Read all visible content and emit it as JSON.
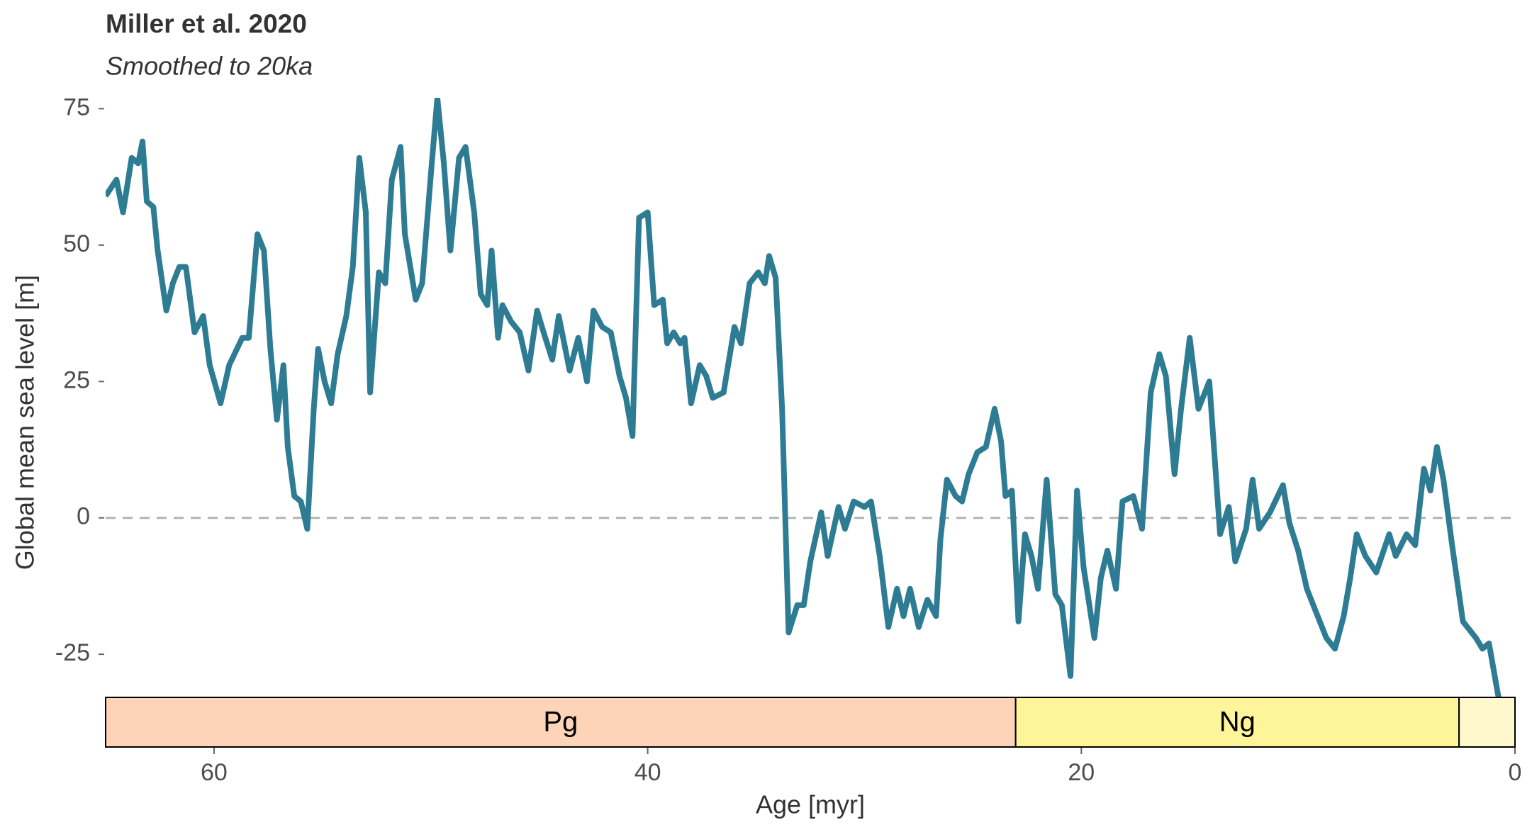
{
  "chart_data": {
    "type": "line",
    "title": "Miller et al. 2020",
    "subtitle": "Smoothed to 20ka",
    "x_label": "Age [myr]",
    "y_label": "Global mean sea level [m]",
    "xlim": [
      65,
      0
    ],
    "xticks": [
      60,
      40,
      20,
      0
    ],
    "ylim": [
      -42,
      77
    ],
    "yticks": [
      75,
      50,
      25,
      0,
      -25
    ],
    "grid": false,
    "hline": 0,
    "x": [
      65,
      64.5,
      64.2,
      63.8,
      63.5,
      63.3,
      63.1,
      62.8,
      62.6,
      62.2,
      61.9,
      61.6,
      61.3,
      60.9,
      60.5,
      60.2,
      59.7,
      59.3,
      58.7,
      58.4,
      58.0,
      57.7,
      57.4,
      57.1,
      56.8,
      56.6,
      56.3,
      56.0,
      55.7,
      55.4,
      55.2,
      54.9,
      54.6,
      54.3,
      53.9,
      53.6,
      53.3,
      53.0,
      52.8,
      52.4,
      52.1,
      51.8,
      51.4,
      51.2,
      50.7,
      50.4,
      50.0,
      49.7,
      49.4,
      49.1,
      48.7,
      48.4,
      48.0,
      47.7,
      47.4,
      47.2,
      46.9,
      46.7,
      46.3,
      45.9,
      45.5,
      45.1,
      44.8,
      44.4,
      44.1,
      43.6,
      43.2,
      42.8,
      42.5,
      42.1,
      41.7,
      41.3,
      41.0,
      40.7,
      40.4,
      40.0,
      39.7,
      39.3,
      39.1,
      38.8,
      38.5,
      38.3,
      38.0,
      37.6,
      37.3,
      37.0,
      36.5,
      36.0,
      35.7,
      35.3,
      34.9,
      34.6,
      34.4,
      34.1,
      33.8,
      33.5,
      33.1,
      32.8,
      32.5,
      32.0,
      31.7,
      31.2,
      30.9,
      30.5,
      30.0,
      29.7,
      29.3,
      28.9,
      28.5,
      28.2,
      27.9,
      27.5,
      27.1,
      26.7,
      26.5,
      26.2,
      25.8,
      25.5,
      25.2,
      24.8,
      24.4,
      24.0,
      23.7,
      23.5,
      23.2,
      22.9,
      22.6,
      22.3,
      22.0,
      21.6,
      21.2,
      20.9,
      20.5,
      20.2,
      19.9,
      19.4,
      19.1,
      18.8,
      18.4,
      18.1,
      17.6,
      17.2,
      16.8,
      16.4,
      16.1,
      15.7,
      15.4,
      15.0,
      14.6,
      14.1,
      13.6,
      13.2,
      12.9,
      12.4,
      12.1,
      11.8,
      11.3,
      10.7,
      10.4,
      10.0,
      9.6,
      9.2,
      8.7,
      8.3,
      7.9,
      7.6,
      7.3,
      6.9,
      6.4,
      5.8,
      5.5,
      5.0,
      4.6,
      4.2,
      3.9,
      3.6,
      3.3,
      2.9,
      2.4,
      1.8,
      1.5,
      1.2,
      0.8,
      0.6
    ],
    "series": [
      {
        "name": "Global mean sea level",
        "color": "#2e7c93",
        "values": [
          59,
          62,
          56,
          66,
          65,
          69,
          58,
          57,
          49,
          38,
          43,
          46,
          46,
          34,
          37,
          28,
          21,
          28,
          33,
          33,
          52,
          49,
          31,
          18,
          28,
          13,
          4,
          3,
          -2,
          20,
          31,
          25,
          21,
          30,
          37,
          46,
          66,
          56,
          23,
          45,
          43,
          62,
          68,
          52,
          40,
          43,
          63,
          77,
          65,
          49,
          66,
          68,
          56,
          41,
          39,
          49,
          33,
          39,
          36,
          34,
          27,
          38,
          34,
          29,
          37,
          27,
          33,
          25,
          38,
          35,
          34,
          26,
          22,
          15,
          55,
          56,
          39,
          40,
          32,
          34,
          32,
          33,
          21,
          28,
          26,
          22,
          23,
          35,
          32,
          43,
          45,
          43,
          48,
          44,
          20,
          -21,
          -16,
          -16,
          -8,
          1,
          -7,
          2,
          -2,
          3,
          2,
          3,
          -7,
          -20,
          -13,
          -18,
          -13,
          -20,
          -15,
          -18,
          -4,
          7,
          4,
          3,
          8,
          12,
          13,
          20,
          14,
          4,
          5,
          -19,
          -3,
          -7,
          -13,
          7,
          -14,
          -16,
          -29,
          5,
          -9,
          -22,
          -11,
          -6,
          -13,
          3,
          4,
          -2,
          23,
          30,
          26,
          8,
          20,
          33,
          20,
          25,
          -3,
          2,
          -8,
          -2,
          7,
          -2,
          1,
          6,
          -1,
          -6,
          -13,
          -17,
          -22,
          -24,
          -18,
          -11,
          -3,
          -7,
          -10,
          -3,
          -7,
          -3,
          -5,
          9,
          5,
          13,
          7,
          -5,
          -19,
          -22,
          -24,
          -23,
          -32,
          -36
        ]
      }
    ],
    "timescale": [
      {
        "label": "Pg",
        "start": 66,
        "end": 23.03,
        "color": "#fdd4b8"
      },
      {
        "label": "Ng",
        "start": 23.03,
        "end": 2.58,
        "color": "#fef59a"
      },
      {
        "label": null,
        "start": 2.58,
        "end": 0,
        "color": "#fef9cc"
      }
    ]
  }
}
